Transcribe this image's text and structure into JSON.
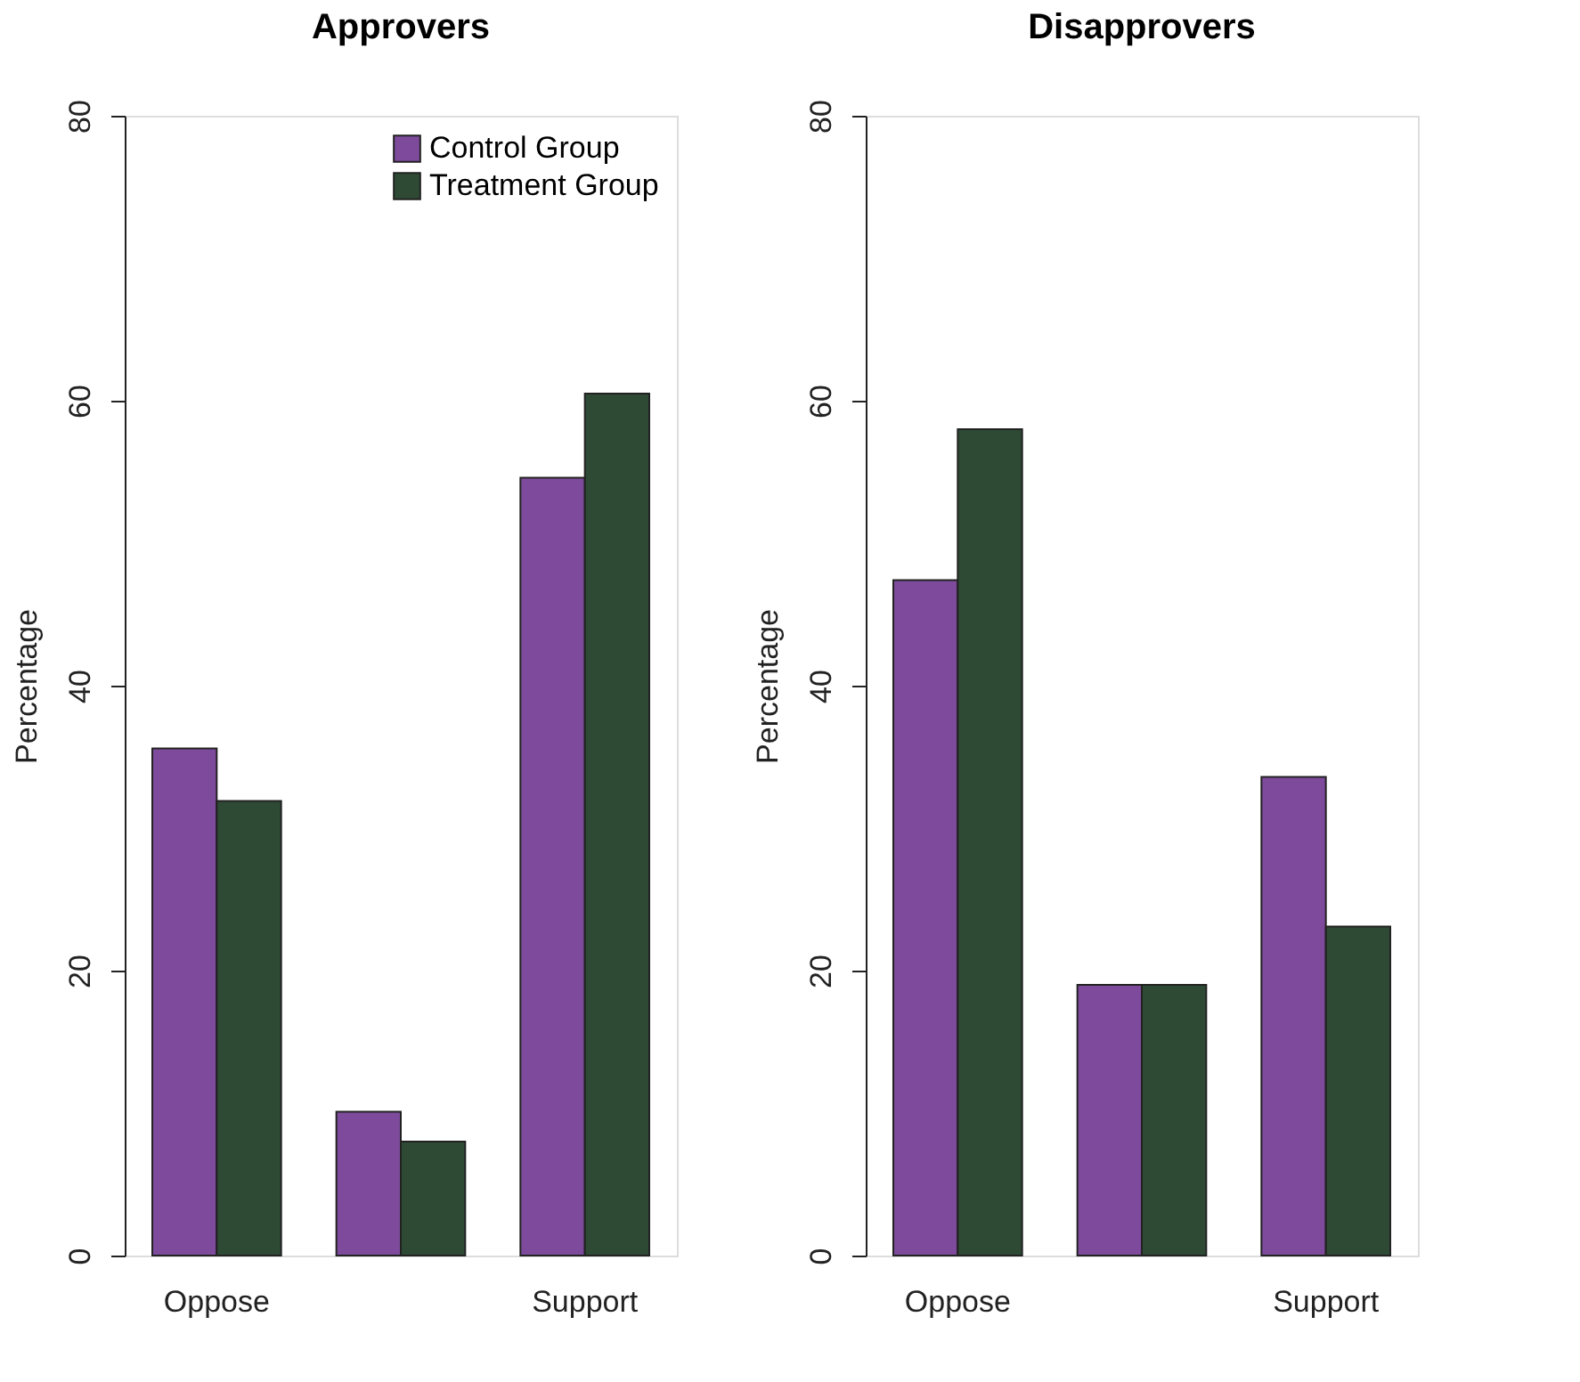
{
  "chart_data": [
    {
      "type": "bar",
      "title": "Approvers",
      "ylabel": "Percentage",
      "categories": [
        "Oppose",
        null,
        "Support"
      ],
      "ylim": [
        0,
        80
      ],
      "yticks": [
        0,
        20,
        40,
        60,
        80
      ],
      "grid": false,
      "legend": "top right",
      "series": [
        {
          "name": "Control Group",
          "color": "#7e4b9c",
          "values": [
            35.6,
            10.1,
            54.6
          ]
        },
        {
          "name": "Treatment Group",
          "color": "#2e4a35",
          "values": [
            31.9,
            8.0,
            60.5
          ]
        }
      ]
    },
    {
      "type": "bar",
      "title": "Disapprovers",
      "ylabel": "Percentage",
      "categories": [
        "Oppose",
        null,
        "Support"
      ],
      "ylim": [
        0,
        80
      ],
      "yticks": [
        0,
        20,
        40,
        60,
        80
      ],
      "grid": false,
      "series": [
        {
          "color": "#7e4b9c",
          "values": [
            47.4,
            19.0,
            33.6
          ]
        },
        {
          "color": "#2e4a35",
          "values": [
            58.0,
            19.0,
            23.1
          ]
        }
      ]
    }
  ]
}
